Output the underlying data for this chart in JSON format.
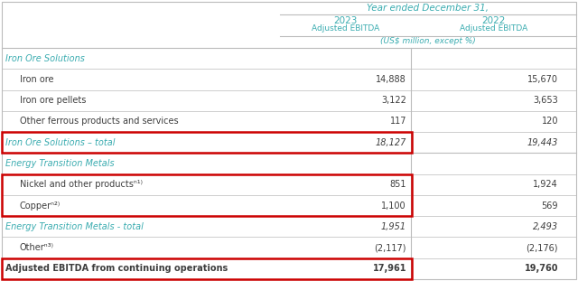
{
  "title_line1": "Year ended December 31,",
  "col_header_year": [
    "2023",
    "2022"
  ],
  "col_header_sub": [
    "Adjusted EBITDA",
    "Adjusted EBITDA"
  ],
  "col_header_unit": "(US$ million, except %)",
  "teal_color": "#3AACB0",
  "dark_text": "#3D3D3D",
  "bg_color": "#FFFFFF",
  "red_box_color": "#CC0000",
  "rows": [
    {
      "label": "Iron Ore Solutions",
      "v2023": "",
      "v2022": "",
      "type": "section_header"
    },
    {
      "label": "Iron ore",
      "v2023": "14,888",
      "v2022": "15,670",
      "type": "data",
      "indent": true
    },
    {
      "label": "Iron ore pellets",
      "v2023": "3,122",
      "v2022": "3,653",
      "type": "data",
      "indent": true
    },
    {
      "label": "Other ferrous products and services",
      "v2023": "117",
      "v2022": "120",
      "type": "data",
      "indent": true
    },
    {
      "label": "Iron Ore Solutions – total",
      "v2023": "18,127",
      "v2022": "19,443",
      "type": "subtotal"
    },
    {
      "label": "Energy Transition Metals",
      "v2023": "",
      "v2022": "",
      "type": "section_header"
    },
    {
      "label": "Nickel and other productsⁿ¹⁾",
      "v2023": "851",
      "v2022": "1,924",
      "type": "data",
      "indent": true
    },
    {
      "label": "Copperⁿ²⁾",
      "v2023": "1,100",
      "v2022": "569",
      "type": "data",
      "indent": true
    },
    {
      "label": "Energy Transition Metals - total",
      "v2023": "1,951",
      "v2022": "2,493",
      "type": "subtotal"
    },
    {
      "label": "Otherⁿ³⁾",
      "v2023": "(2,117)",
      "v2022": "(2,176)",
      "type": "data",
      "indent": true
    },
    {
      "label": "Adjusted EBITDA from continuing operations",
      "v2023": "17,961",
      "v2022": "19,760",
      "type": "total"
    }
  ]
}
